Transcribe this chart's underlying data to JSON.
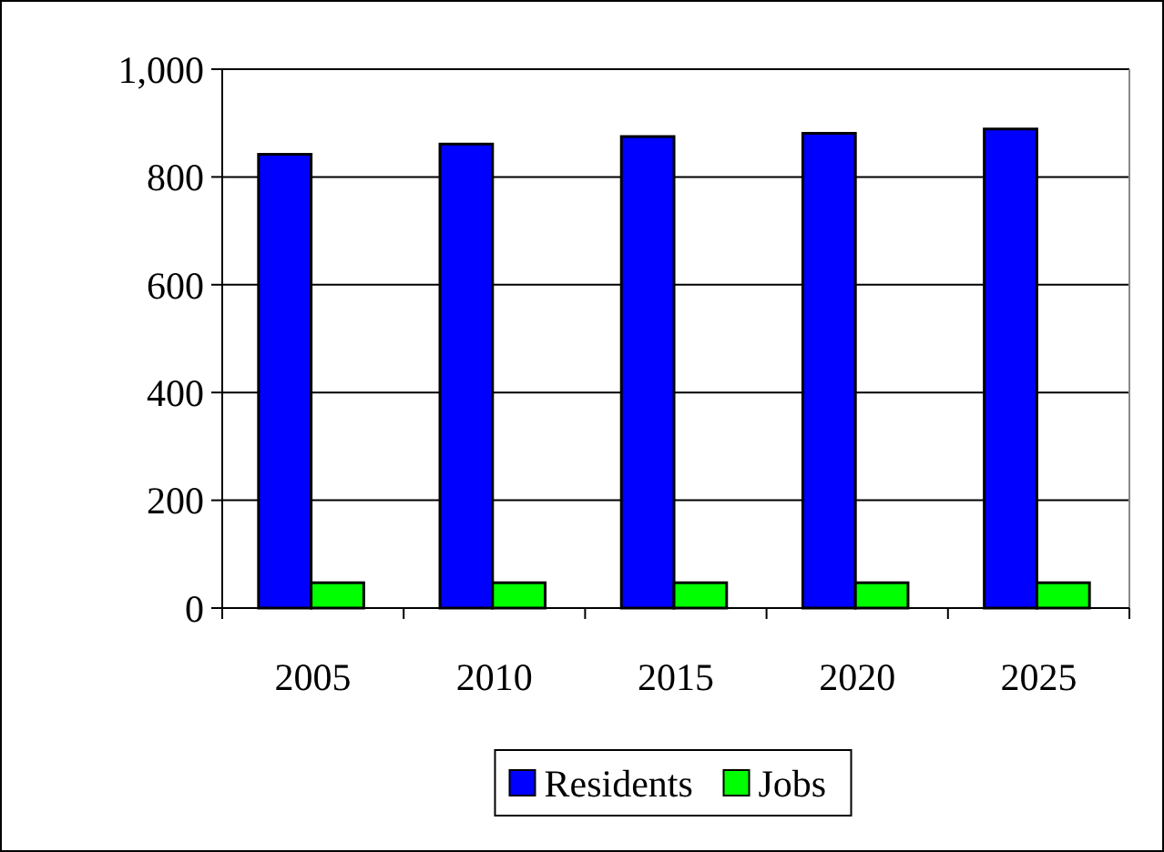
{
  "chart_data": {
    "type": "bar",
    "categories": [
      "2005",
      "2010",
      "2015",
      "2020",
      "2025"
    ],
    "series": [
      {
        "name": "Residents",
        "color": "#0000ff",
        "values": [
          842,
          861,
          875,
          881,
          889
        ]
      },
      {
        "name": "Jobs",
        "color": "#00ff00",
        "values": [
          47,
          47,
          47,
          47,
          47
        ]
      }
    ],
    "ylim": [
      0,
      1000
    ],
    "yticks": [
      0,
      200,
      400,
      600,
      800,
      {
        "value": 1000,
        "label": "1,000"
      }
    ],
    "grid": "y",
    "legend": "bottom"
  }
}
